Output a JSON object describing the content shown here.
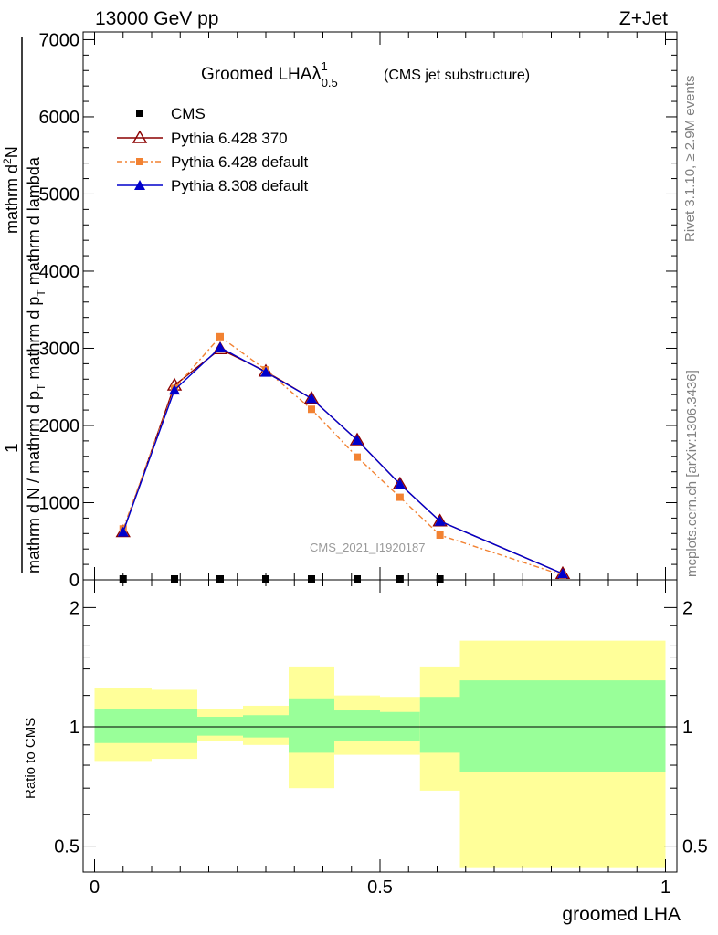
{
  "header": {
    "energy_label": "13000 GeV pp",
    "process_label": "Z+Jet"
  },
  "side_labels": {
    "rivet": "Rivet 3.1.10, ≥ 2.9M events",
    "mcplots": "mcplots.cern.ch [arXiv:1306.3436]"
  },
  "chart_data": [
    {
      "type": "line",
      "title": "Groomed LHA",
      "title_symbol": "λ",
      "title_sup": "1",
      "title_sub": "0.5",
      "subtitle": "(CMS jet substructure)",
      "analysis_tag": "CMS_2021_I1920187",
      "ylabel_numer_prefix": "1",
      "ylabel_numer": "mathrm d",
      "ylabel_numer_sup": "2",
      "ylabel_numer_tail": "N",
      "ylabel_denom_a": "mathrm d N / mathrm d p",
      "ylabel_denom_a_sub": "T",
      "ylabel_denom_b": " mathrm d p",
      "ylabel_denom_b_sub": "T",
      "ylabel_denom_c": " mathrm d lambda",
      "ylim": [
        0,
        7100
      ],
      "xlim": [
        -0.02,
        1.02
      ],
      "yticks": [
        0,
        1000,
        2000,
        3000,
        4000,
        5000,
        6000,
        7000
      ],
      "ytick_labels": [
        "0",
        "1000",
        "2000",
        "3000",
        "4000",
        "5000",
        "6000",
        "7000"
      ],
      "grid": false,
      "legend_position": "top-left",
      "series": [
        {
          "name": "CMS",
          "color": "#000000",
          "marker": "square",
          "x": [
            0.05,
            0.14,
            0.22,
            0.3,
            0.38,
            0.46,
            0.535,
            0.605
          ],
          "y": [
            0,
            0,
            0,
            0,
            0,
            0,
            0,
            0
          ]
        },
        {
          "name": "Pythia 6.428 370",
          "color": "#8b0000",
          "marker": "triangle-open",
          "x": [
            0.05,
            0.14,
            0.22,
            0.3,
            0.38,
            0.46,
            0.535,
            0.605,
            0.82
          ],
          "y": [
            620,
            2520,
            2990,
            2700,
            2350,
            1810,
            1240,
            760,
            80
          ]
        },
        {
          "name": "Pythia 6.428 default",
          "color": "#f28232",
          "marker": "square",
          "x": [
            0.05,
            0.14,
            0.22,
            0.3,
            0.38,
            0.46,
            0.535,
            0.605,
            0.82
          ],
          "y": [
            660,
            2480,
            3150,
            2720,
            2210,
            1590,
            1070,
            580,
            60
          ]
        },
        {
          "name": "Pythia 8.308 default",
          "color": "#0000cc",
          "marker": "triangle",
          "x": [
            0.05,
            0.14,
            0.22,
            0.3,
            0.38,
            0.46,
            0.535,
            0.605,
            0.82
          ],
          "y": [
            620,
            2460,
            3010,
            2690,
            2350,
            1810,
            1240,
            760,
            80
          ]
        }
      ]
    },
    {
      "type": "area",
      "ylabel": "Ratio to CMS",
      "xlabel": "groomed LHA",
      "scale": "log",
      "ylim": [
        0.43,
        2.35
      ],
      "xlim": [
        -0.02,
        1.02
      ],
      "yticks": [
        0.5,
        1,
        2
      ],
      "ytick_labels": [
        "0.5",
        "1",
        "2"
      ],
      "xticks": [
        0,
        0.5,
        1
      ],
      "xtick_labels": [
        "0",
        "0.5",
        "1"
      ],
      "bands": [
        {
          "x0": 0.0,
          "x1": 0.1,
          "yellow": [
            0.82,
            1.25
          ],
          "green": [
            0.91,
            1.11
          ]
        },
        {
          "x0": 0.1,
          "x1": 0.18,
          "yellow": [
            0.83,
            1.24
          ],
          "green": [
            0.91,
            1.11
          ]
        },
        {
          "x0": 0.18,
          "x1": 0.26,
          "yellow": [
            0.92,
            1.11
          ],
          "green": [
            0.95,
            1.06
          ]
        },
        {
          "x0": 0.26,
          "x1": 0.34,
          "yellow": [
            0.9,
            1.13
          ],
          "green": [
            0.94,
            1.07
          ]
        },
        {
          "x0": 0.34,
          "x1": 0.42,
          "yellow": [
            0.7,
            1.42
          ],
          "green": [
            0.86,
            1.18
          ]
        },
        {
          "x0": 0.42,
          "x1": 0.5,
          "yellow": [
            0.85,
            1.2
          ],
          "green": [
            0.92,
            1.1
          ]
        },
        {
          "x0": 0.5,
          "x1": 0.57,
          "yellow": [
            0.85,
            1.19
          ],
          "green": [
            0.92,
            1.09
          ]
        },
        {
          "x0": 0.57,
          "x1": 0.64,
          "yellow": [
            0.69,
            1.42
          ],
          "green": [
            0.86,
            1.19
          ]
        },
        {
          "x0": 0.64,
          "x1": 1.0,
          "yellow": [
            0.44,
            1.65
          ],
          "green": [
            0.77,
            1.31
          ]
        }
      ]
    }
  ]
}
